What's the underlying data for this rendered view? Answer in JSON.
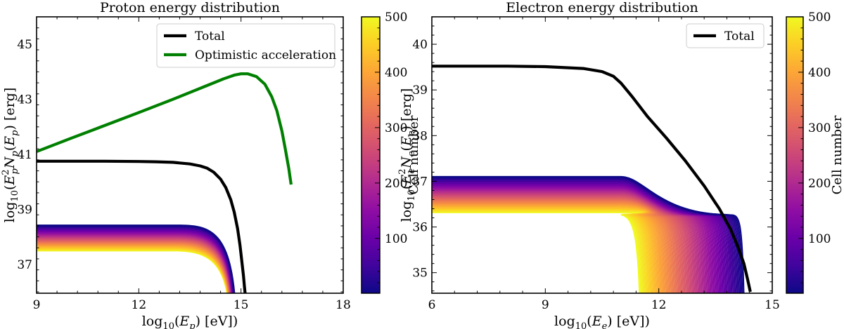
{
  "chart_data": [
    {
      "type": "line",
      "title": "Proton energy distribution",
      "xlabel": "log10(E_p) [eV])",
      "ylabel": "log10(E_p^2 N_p(E_p))   [erg]",
      "xlim": [
        9,
        18
      ],
      "ylim": [
        35.95,
        46.0
      ],
      "xticks": [
        9,
        12,
        15,
        18
      ],
      "yticks": [
        37,
        39,
        41,
        43,
        45
      ],
      "grid": false,
      "legend": "top-right",
      "series": [
        {
          "name": "Total",
          "color": "#000000",
          "x": [
            9.0,
            10.0,
            11.0,
            12.0,
            12.5,
            13.0,
            13.5,
            13.8,
            14.0,
            14.2,
            14.4,
            14.55,
            14.7,
            14.8,
            14.9,
            14.97,
            15.03,
            15.07,
            15.1,
            15.12
          ],
          "y": [
            40.75,
            40.75,
            40.75,
            40.74,
            40.73,
            40.71,
            40.65,
            40.58,
            40.5,
            40.35,
            40.1,
            39.8,
            39.35,
            38.9,
            38.3,
            37.7,
            37.05,
            36.6,
            36.2,
            35.95
          ]
        },
        {
          "name": "Optimistic acceleration",
          "color": "#008000",
          "x": [
            9.0,
            10.0,
            11.0,
            12.0,
            13.0,
            14.0,
            14.5,
            14.8,
            15.0,
            15.2,
            15.45,
            15.7,
            15.9,
            16.05,
            16.2,
            16.3,
            16.4,
            16.47
          ],
          "y": [
            41.1,
            41.58,
            42.05,
            42.52,
            43.0,
            43.5,
            43.75,
            43.88,
            43.93,
            43.93,
            43.83,
            43.55,
            43.1,
            42.6,
            41.85,
            41.2,
            40.5,
            39.9
          ]
        }
      ],
      "cell_band": {
        "y_min": 37.5,
        "y_max": 38.42,
        "x_cut_start": 14.62,
        "x_cut_end": 14.82
      },
      "colorbar": {
        "label": "Cell number",
        "range": [
          1,
          500
        ],
        "ticks": [
          100,
          200,
          300,
          400,
          500
        ]
      }
    },
    {
      "type": "line",
      "title": "Electron energy distribution",
      "xlabel": "log10(E_e) [eV])",
      "ylabel": "log10(E_e^2 N_e(E_e))   [erg]",
      "xlim": [
        6,
        15
      ],
      "ylim": [
        34.55,
        40.6
      ],
      "xticks": [
        6,
        9,
        12,
        15
      ],
      "yticks": [
        35,
        36,
        37,
        38,
        39,
        40
      ],
      "grid": false,
      "legend": "top-right",
      "series": [
        {
          "name": "Total",
          "color": "#000000",
          "x": [
            6.0,
            7.0,
            8.0,
            9.0,
            10.0,
            10.5,
            10.8,
            11.0,
            11.3,
            11.7,
            12.2,
            12.7,
            13.2,
            13.6,
            13.9,
            14.1,
            14.25,
            14.35,
            14.42
          ],
          "y": [
            39.52,
            39.52,
            39.52,
            39.51,
            39.47,
            39.4,
            39.3,
            39.15,
            38.85,
            38.42,
            37.95,
            37.45,
            36.9,
            36.4,
            35.95,
            35.55,
            35.2,
            34.85,
            34.58
          ]
        }
      ],
      "cell_band": {
        "y_min": 36.32,
        "y_max": 37.1,
        "x_cut_start": 11.5,
        "x_cut_end": 14.25
      },
      "colorbar": {
        "label": "Cell number",
        "range": [
          1,
          500
        ],
        "ticks": [
          100,
          200,
          300,
          400,
          500
        ]
      }
    }
  ]
}
